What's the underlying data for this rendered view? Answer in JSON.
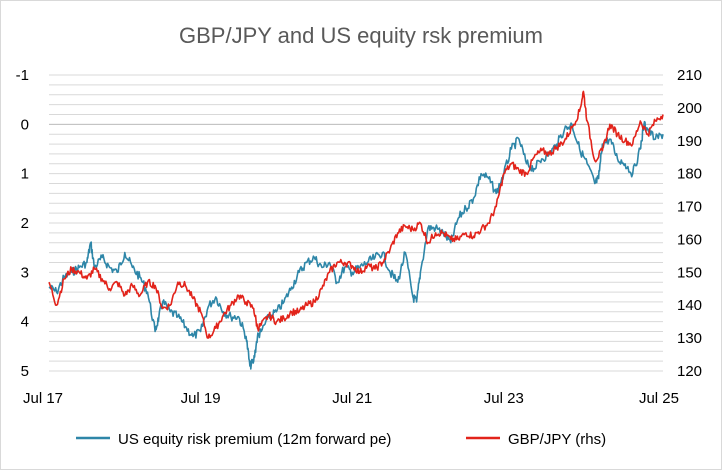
{
  "chart_data": {
    "type": "line",
    "title": "GBP/JPY and US equity rsk premium",
    "x_tick_labels": [
      "Jul 17",
      "Jul 19",
      "Jul 21",
      "Jul 23",
      "Jul 25"
    ],
    "x_tick_values": [
      2017.5,
      2019.5,
      2021.5,
      2023.5,
      2025.5
    ],
    "xlim": [
      2017.5,
      2025.6
    ],
    "y_left": {
      "ylim": [
        -1,
        5
      ],
      "inverted": true,
      "tick_labels": [
        "-1",
        "0",
        "1",
        "2",
        "3",
        "4",
        "5"
      ]
    },
    "y_right": {
      "ylim": [
        120,
        210
      ],
      "tick_labels": [
        "210",
        "200",
        "190",
        "180",
        "170",
        "160",
        "150",
        "140",
        "130",
        "120"
      ]
    },
    "grid": true,
    "legend_position": "bottom",
    "series": [
      {
        "name": "US equity risk premium (12m forward pe)",
        "axis": "left",
        "color": "#2e86a8",
        "x": [
          2017.5,
          2017.6,
          2017.7,
          2017.8,
          2017.9,
          2018.0,
          2018.05,
          2018.1,
          2018.2,
          2018.3,
          2018.4,
          2018.5,
          2018.6,
          2018.7,
          2018.8,
          2018.9,
          2018.95,
          2019.0,
          2019.1,
          2019.2,
          2019.3,
          2019.4,
          2019.5,
          2019.6,
          2019.7,
          2019.8,
          2019.9,
          2020.0,
          2020.1,
          2020.15,
          2020.2,
          2020.25,
          2020.3,
          2020.4,
          2020.5,
          2020.6,
          2020.7,
          2020.8,
          2020.9,
          2021.0,
          2021.1,
          2021.2,
          2021.3,
          2021.4,
          2021.5,
          2021.6,
          2021.7,
          2021.8,
          2021.9,
          2022.0,
          2022.1,
          2022.2,
          2022.3,
          2022.35,
          2022.4,
          2022.5,
          2022.6,
          2022.7,
          2022.8,
          2022.9,
          2023.0,
          2023.1,
          2023.2,
          2023.3,
          2023.4,
          2023.5,
          2023.6,
          2023.7,
          2023.8,
          2023.9,
          2024.0,
          2024.1,
          2024.2,
          2024.3,
          2024.4,
          2024.5,
          2024.6,
          2024.7,
          2024.75,
          2024.8,
          2024.9,
          2025.0,
          2025.1,
          2025.2,
          2025.3,
          2025.35,
          2025.4,
          2025.5,
          2025.6
        ],
        "values": [
          3.3,
          3.4,
          3.1,
          3.0,
          2.9,
          2.8,
          2.4,
          2.9,
          2.7,
          2.9,
          3.0,
          2.6,
          2.9,
          3.1,
          3.4,
          4.2,
          3.9,
          3.6,
          3.8,
          3.9,
          4.1,
          4.3,
          4.2,
          3.7,
          3.5,
          3.8,
          3.9,
          3.9,
          4.3,
          4.9,
          4.8,
          4.3,
          4.2,
          3.9,
          3.8,
          3.6,
          3.3,
          3.0,
          2.8,
          2.7,
          2.9,
          2.8,
          3.2,
          2.9,
          3.0,
          2.9,
          2.8,
          2.7,
          2.6,
          3.0,
          3.2,
          2.6,
          3.5,
          3.6,
          3.0,
          2.1,
          2.1,
          2.2,
          2.4,
          1.9,
          1.7,
          1.5,
          1.0,
          1.1,
          1.4,
          1.0,
          0.5,
          0.3,
          0.8,
          0.9,
          0.7,
          0.6,
          0.4,
          0.1,
          0.0,
          0.5,
          0.8,
          1.2,
          1.1,
          0.4,
          0.3,
          0.7,
          0.8,
          1.0,
          0.5,
          0.0,
          0.1,
          0.3,
          0.2
        ]
      },
      {
        "name": "GBP/JPY (rhs)",
        "axis": "right",
        "color": "#e2231a",
        "x": [
          2017.5,
          2017.6,
          2017.7,
          2017.8,
          2017.9,
          2018.0,
          2018.1,
          2018.2,
          2018.3,
          2018.4,
          2018.5,
          2018.6,
          2018.7,
          2018.8,
          2018.9,
          2019.0,
          2019.1,
          2019.2,
          2019.3,
          2019.4,
          2019.5,
          2019.6,
          2019.7,
          2019.8,
          2019.9,
          2020.0,
          2020.1,
          2020.2,
          2020.25,
          2020.3,
          2020.4,
          2020.5,
          2020.6,
          2020.7,
          2020.8,
          2020.9,
          2021.0,
          2021.1,
          2021.2,
          2021.3,
          2021.4,
          2021.5,
          2021.6,
          2021.7,
          2021.8,
          2021.9,
          2022.0,
          2022.1,
          2022.2,
          2022.3,
          2022.4,
          2022.5,
          2022.6,
          2022.7,
          2022.8,
          2022.9,
          2023.0,
          2023.1,
          2023.2,
          2023.3,
          2023.4,
          2023.5,
          2023.6,
          2023.7,
          2023.8,
          2023.9,
          2024.0,
          2024.1,
          2024.2,
          2024.3,
          2024.4,
          2024.5,
          2024.55,
          2024.6,
          2024.7,
          2024.8,
          2024.9,
          2025.0,
          2025.1,
          2025.2,
          2025.3,
          2025.4,
          2025.5,
          2025.6
        ],
        "values": [
          147,
          140,
          148,
          151,
          150,
          148,
          151,
          148,
          145,
          147,
          143,
          146,
          143,
          147,
          146,
          139,
          140,
          147,
          146,
          142,
          138,
          130,
          133,
          137,
          140,
          143,
          141,
          139,
          133,
          134,
          137,
          135,
          136,
          138,
          138,
          140,
          141,
          145,
          150,
          153,
          153,
          152,
          150,
          152,
          151,
          153,
          157,
          162,
          164,
          163,
          165,
          159,
          162,
          162,
          160,
          160,
          162,
          161,
          163,
          165,
          170,
          180,
          183,
          181,
          180,
          185,
          187,
          186,
          188,
          190,
          194,
          199,
          205,
          196,
          184,
          187,
          195,
          192,
          190,
          189,
          196,
          192,
          196,
          198
        ]
      }
    ]
  }
}
